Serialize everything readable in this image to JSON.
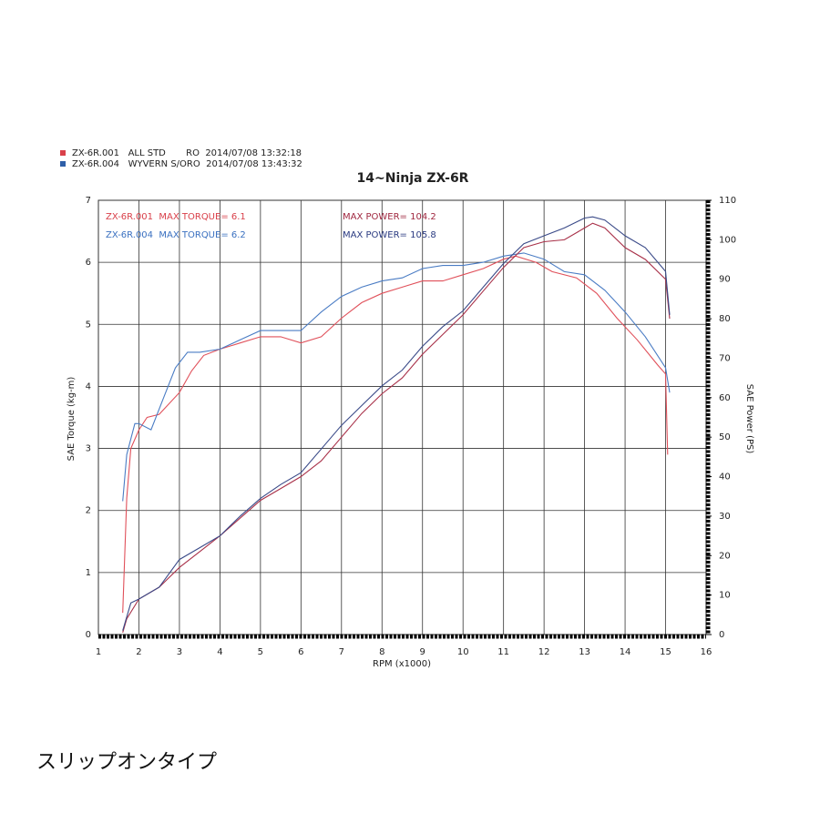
{
  "chart_data": {
    "type": "line",
    "title": "14~Ninja ZX-6R",
    "xlabel": "RPM (x1000)",
    "ylabel": "SAE Torque (kg-m)",
    "y2label": "SAE Power (PS)",
    "xlim": [
      1,
      16
    ],
    "xticks": [
      1,
      2,
      3,
      4,
      5,
      6,
      7,
      8,
      9,
      10,
      11,
      12,
      13,
      14,
      15,
      16
    ],
    "ylim": [
      0,
      7
    ],
    "yticks": [
      0,
      1,
      2,
      3,
      4,
      5,
      6,
      7
    ],
    "y2lim": [
      0,
      110
    ],
    "y2ticks": [
      0,
      10,
      20,
      30,
      40,
      50,
      60,
      70,
      80,
      90,
      100,
      110
    ],
    "grid": true,
    "legend": [
      {
        "label": "ZX-6R.001   ALL STD       RO  2014/07/08 13:32:18",
        "color": "#d9404a"
      },
      {
        "label": "ZX-6R.004   WYVERN S/ORO  2014/07/08 13:43:32",
        "color": "#2f5fa8"
      }
    ],
    "annotations": [
      {
        "text": "ZX-6R.001  MAX TORQUE= 6.1",
        "color": "#d9404a"
      },
      {
        "text": "MAX POWER= 104.2",
        "color": "#a02840"
      },
      {
        "text": "ZX-6R.004  MAX TORQUE= 6.2",
        "color": "#3a70c0"
      },
      {
        "text": "MAX POWER= 105.8",
        "color": "#2a3a80"
      }
    ],
    "series": [
      {
        "color": "#e0505a",
        "axis": "y",
        "x": [
          1.6,
          1.7,
          1.8,
          2.0,
          2.2,
          2.5,
          3.0,
          3.3,
          3.6,
          4.0,
          4.5,
          5.0,
          5.5,
          6.0,
          6.5,
          7.0,
          7.5,
          8.0,
          8.5,
          9.0,
          9.5,
          10.0,
          10.5,
          11.0,
          11.3,
          11.8,
          12.2,
          12.8,
          13.3,
          13.8,
          14.3,
          14.8,
          15.0,
          15.05
        ],
        "values": [
          0.35,
          2.2,
          3.0,
          3.3,
          3.5,
          3.55,
          3.9,
          4.25,
          4.5,
          4.6,
          4.7,
          4.8,
          4.8,
          4.7,
          4.8,
          5.1,
          5.35,
          5.5,
          5.6,
          5.7,
          5.7,
          5.8,
          5.9,
          6.05,
          6.1,
          6.0,
          5.85,
          5.75,
          5.5,
          5.1,
          4.75,
          4.35,
          4.2,
          2.9
        ]
      },
      {
        "color": "#4a7cc4",
        "axis": "y",
        "x": [
          1.6,
          1.7,
          1.9,
          2.0,
          2.3,
          2.6,
          2.9,
          3.2,
          3.5,
          4.0,
          4.5,
          5.0,
          5.5,
          6.0,
          6.5,
          7.0,
          7.5,
          8.0,
          8.5,
          9.0,
          9.5,
          10.0,
          10.5,
          11.0,
          11.5,
          12.0,
          12.5,
          13.0,
          13.5,
          14.0,
          14.5,
          15.0,
          15.1
        ],
        "values": [
          2.15,
          2.9,
          3.4,
          3.4,
          3.3,
          3.8,
          4.3,
          4.55,
          4.55,
          4.6,
          4.75,
          4.9,
          4.9,
          4.9,
          5.2,
          5.45,
          5.6,
          5.7,
          5.75,
          5.9,
          5.95,
          5.95,
          6.0,
          6.1,
          6.15,
          6.05,
          5.85,
          5.8,
          5.55,
          5.2,
          4.8,
          4.3,
          3.9
        ]
      },
      {
        "color": "#a83048",
        "axis": "y2",
        "x": [
          1.6,
          1.7,
          2.0,
          2.5,
          3.0,
          3.5,
          4.0,
          4.5,
          5.0,
          5.5,
          6.0,
          6.5,
          7.0,
          7.5,
          8.0,
          8.5,
          9.0,
          9.5,
          10.0,
          10.5,
          11.0,
          11.5,
          12.0,
          12.5,
          13.0,
          13.2,
          13.5,
          14.0,
          14.5,
          15.0,
          15.1
        ],
        "values": [
          0.5,
          4,
          9,
          12,
          17,
          21,
          25,
          29.5,
          34,
          37,
          40,
          44,
          50,
          56,
          61,
          65,
          71,
          76,
          81,
          87,
          93,
          98,
          99.5,
          100,
          103,
          104.2,
          103,
          98,
          95,
          90,
          80
        ]
      },
      {
        "color": "#3a4a88",
        "axis": "y2",
        "x": [
          1.6,
          1.8,
          2.0,
          2.5,
          3.0,
          3.5,
          4.0,
          4.5,
          5.0,
          5.5,
          6.0,
          6.5,
          7.0,
          7.5,
          8.0,
          8.5,
          9.0,
          9.5,
          10.0,
          10.5,
          11.0,
          11.5,
          12.0,
          12.5,
          13.0,
          13.2,
          13.5,
          14.0,
          14.5,
          15.0,
          15.1
        ],
        "values": [
          1,
          8,
          9,
          12,
          19,
          22,
          25,
          30,
          34.5,
          38,
          41,
          47,
          53,
          58,
          63,
          67,
          73,
          78,
          82,
          88,
          94,
          99,
          101,
          103,
          105.5,
          105.8,
          105,
          101,
          98,
          92,
          81
        ]
      }
    ]
  },
  "caption": "スリップオンタイプ"
}
